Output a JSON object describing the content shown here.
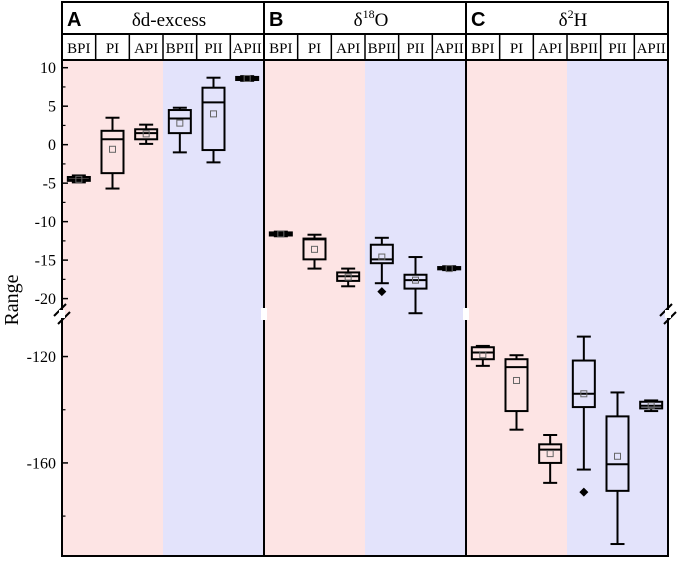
{
  "chart_data": {
    "type": "box",
    "ylabel": "Range",
    "colors": {
      "bg_first_half": "#fde4e4",
      "bg_second_half": "#e3e3fb"
    },
    "upper_axis": {
      "ticks": [
        10,
        5,
        0,
        -5,
        -10,
        -15,
        -20
      ],
      "tick_labels": [
        "10",
        "5",
        "0",
        "-5",
        "-10",
        "-15",
        "-20"
      ],
      "range": [
        11,
        -22
      ]
    },
    "lower_axis": {
      "ticks": [
        -120,
        -160
      ],
      "tick_labels": [
        "-120",
        "-160"
      ],
      "range": [
        -104,
        -195
      ]
    },
    "panels": [
      {
        "letter": "A",
        "title_main": "δd-excess",
        "title_sup": "",
        "title_tail": "",
        "axis": "upper",
        "groups": [
          "BPI",
          "PI",
          "API",
          "BPII",
          "PII",
          "APII"
        ],
        "boxes": [
          {
            "group": "BPI",
            "whisker_low": -4.9,
            "q1": -4.7,
            "median": -4.5,
            "q3": -4.2,
            "whisker_high": -4.0,
            "mean": -4.5,
            "outliers": []
          },
          {
            "group": "PI",
            "whisker_low": -5.7,
            "q1": -3.7,
            "median": 0.7,
            "q3": 1.8,
            "whisker_high": 3.5,
            "mean": -0.6,
            "outliers": []
          },
          {
            "group": "API",
            "whisker_low": 0.1,
            "q1": 0.7,
            "median": 1.5,
            "q3": 2.0,
            "whisker_high": 2.6,
            "mean": 1.4,
            "outliers": []
          },
          {
            "group": "BPII",
            "whisker_low": -1.0,
            "q1": 1.5,
            "median": 3.4,
            "q3": 4.5,
            "whisker_high": 4.8,
            "mean": 2.8,
            "outliers": []
          },
          {
            "group": "PII",
            "whisker_low": -2.3,
            "q1": -0.7,
            "median": 5.5,
            "q3": 7.4,
            "whisker_high": 8.7,
            "mean": 4.0,
            "outliers": []
          },
          {
            "group": "APII",
            "whisker_low": 8.3,
            "q1": 8.4,
            "median": 8.6,
            "q3": 8.8,
            "whisker_high": 8.9,
            "mean": 8.6,
            "outliers": []
          }
        ]
      },
      {
        "letter": "B",
        "title_main": "δ",
        "title_sup": "18",
        "title_tail": "O",
        "axis": "upper",
        "groups": [
          "BPI",
          "PI",
          "API",
          "BPII",
          "PII",
          "APII"
        ],
        "boxes": [
          {
            "group": "BPI",
            "whisker_low": -11.9,
            "q1": -11.8,
            "median": -11.6,
            "q3": -11.4,
            "whisker_high": -11.3,
            "mean": -11.6,
            "outliers": []
          },
          {
            "group": "PI",
            "whisker_low": -16.1,
            "q1": -14.9,
            "median": -12.3,
            "q3": -12.2,
            "whisker_high": -11.7,
            "mean": -13.6,
            "outliers": []
          },
          {
            "group": "API",
            "whisker_low": -18.4,
            "q1": -17.7,
            "median": -17.1,
            "q3": -16.6,
            "whisker_high": -16.1,
            "mean": -17.2,
            "outliers": []
          },
          {
            "group": "BPII",
            "whisker_low": -18.0,
            "q1": -15.4,
            "median": -14.9,
            "q3": -13.0,
            "whisker_high": -12.1,
            "mean": -14.6,
            "outliers": [
              -19.1
            ]
          },
          {
            "group": "PII",
            "whisker_low": -21.9,
            "q1": -18.7,
            "median": -17.6,
            "q3": -16.9,
            "whisker_high": -14.6,
            "mean": -17.6,
            "outliers": []
          },
          {
            "group": "APII",
            "whisker_low": -16.3,
            "q1": -16.2,
            "median": -16.1,
            "q3": -15.9,
            "whisker_high": -15.8,
            "mean": -16.1,
            "outliers": []
          }
        ]
      },
      {
        "letter": "C",
        "title_main": "δ",
        "title_sup": "2",
        "title_tail": "H",
        "axis": "lower",
        "groups": [
          "BPI",
          "PI",
          "API",
          "BPII",
          "PII",
          "APII"
        ],
        "boxes": [
          {
            "group": "BPI",
            "whisker_low": -123.5,
            "q1": -121.0,
            "median": -118.5,
            "q3": -116.5,
            "whisker_high": -116.0,
            "mean": -119.3,
            "outliers": []
          },
          {
            "group": "PI",
            "whisker_low": -147.5,
            "q1": -140.5,
            "median": -124.0,
            "q3": -121.0,
            "whisker_high": -119.5,
            "mean": -129.0,
            "outliers": []
          },
          {
            "group": "API",
            "whisker_low": -167.5,
            "q1": -160.0,
            "median": -155.0,
            "q3": -153.0,
            "whisker_high": -149.5,
            "mean": -156.5,
            "outliers": []
          },
          {
            "group": "BPII",
            "whisker_low": -162.5,
            "q1": -139.0,
            "median": -134.0,
            "q3": -121.5,
            "whisker_high": -112.5,
            "mean": -134.0,
            "outliers": [
              -171.0
            ]
          },
          {
            "group": "PII",
            "whisker_low": -190.5,
            "q1": -170.5,
            "median": -160.5,
            "q3": -142.5,
            "whisker_high": -133.5,
            "mean -": null,
            "mean": -157.5,
            "outliers": []
          },
          {
            "group": "APII",
            "whisker_low": -140.5,
            "q1": -139.5,
            "median": -138.5,
            "q3": -137.0,
            "whisker_high": -136.5,
            "mean": -138.5,
            "outliers": []
          }
        ]
      }
    ]
  }
}
